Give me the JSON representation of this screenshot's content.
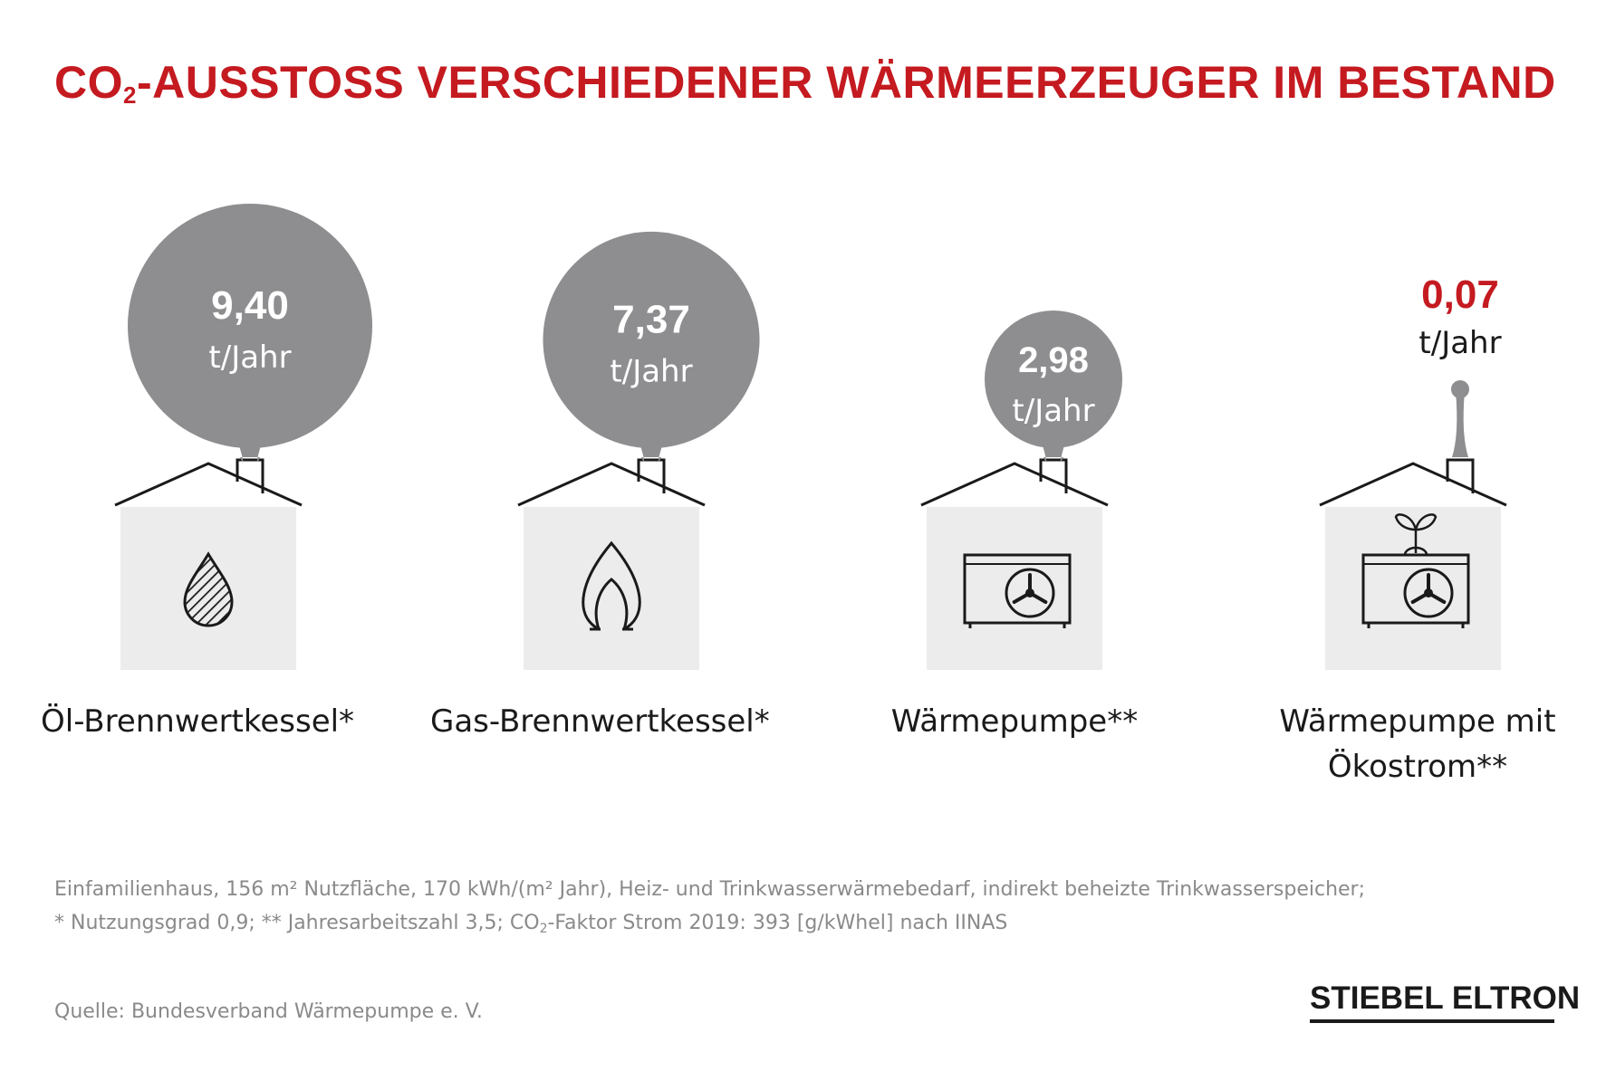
{
  "title": {
    "prefix": "CO",
    "sub": "2",
    "rest": "-AUSSTOSS VERSCHIEDENER WÄRMEERZEUGER IM BESTAND"
  },
  "chart_data": {
    "type": "bubble",
    "unit": "t/Jahr",
    "categories": [
      "Öl-Brennwertkessel*",
      "Gas-Brennwertkessel*",
      "Wärmepumpe**",
      "Wärmepumpe mit Ökostrom**"
    ],
    "values": [
      9.4,
      7.37,
      2.98,
      0.07
    ],
    "value_labels": [
      "9,40",
      "7,37",
      "2,98",
      "0,07"
    ],
    "icons": [
      "oil-drop-icon",
      "gas-flame-icon",
      "heat-pump-icon",
      "heat-pump-eco-icon"
    ],
    "highlight_index": 3,
    "colors": {
      "bubble": "#8e8e91",
      "highlight": "#c41a20",
      "house": "#ececec",
      "roof": "#1a1a1a"
    }
  },
  "labels": {
    "oil": "Öl-Brennwertkessel*",
    "gas": "Gas-Brennwertkessel*",
    "hp": "Wärmepumpe**",
    "eco_line1": "Wärmepumpe mit",
    "eco_line2": "Ökostrom**"
  },
  "footnotes": {
    "line1": "Einfamilienhaus, 156 m² Nutzfläche, 170 kWh/(m² Jahr), Heiz- und Trinkwasserwärmebedarf, indirekt beheizte Trinkwasserspeicher;",
    "line2_pre": "* Nutzungsgrad 0,9; ** Jahresarbeitszahl 3,5; CO",
    "line2_sub": "2",
    "line2_post": "-Faktor Strom 2019: 393 [g/kWhel] nach IINAS",
    "source": "Quelle: Bundesverband Wärmepumpe e. V."
  },
  "logo": "STIEBEL ELTRON"
}
